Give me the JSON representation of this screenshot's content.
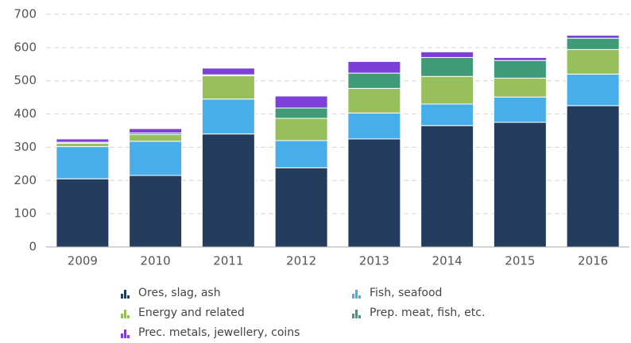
{
  "chart_data": {
    "type": "stacked-bar",
    "categories": [
      "2009",
      "2010",
      "2011",
      "2012",
      "2013",
      "2014",
      "2015",
      "2016"
    ],
    "series": [
      {
        "name": "Ores, slag, ash",
        "color": "#243d5e",
        "values": [
          205,
          215,
          340,
          238,
          325,
          365,
          375,
          425
        ]
      },
      {
        "name": "Fish, seafood",
        "color": "#48aeea",
        "values": [
          97,
          103,
          105,
          82,
          78,
          65,
          76,
          95
        ]
      },
      {
        "name": "Energy and related",
        "color": "#97bf5b",
        "values": [
          10,
          20,
          70,
          67,
          74,
          83,
          57,
          74
        ]
      },
      {
        "name": "Prep. meat, fish, etc.",
        "color": "#3f9a78",
        "values": [
          3,
          5,
          3,
          31,
          46,
          57,
          53,
          34
        ]
      },
      {
        "name": "Prec. metals, jewellery, coins",
        "color": "#7c3fd8",
        "values": [
          10,
          13,
          20,
          36,
          35,
          17,
          9,
          9
        ]
      }
    ],
    "ylim": [
      0,
      700
    ],
    "yticks": [
      0,
      100,
      200,
      300,
      400,
      500,
      600,
      700
    ],
    "grid": true
  }
}
